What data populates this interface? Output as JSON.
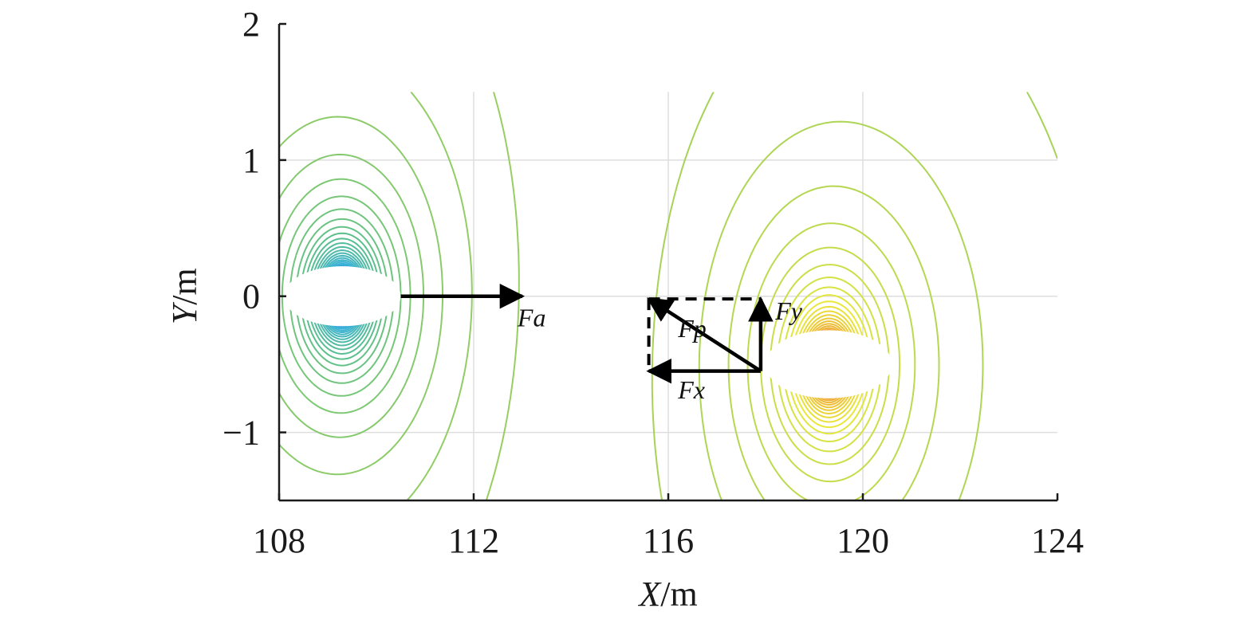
{
  "chart_data": {
    "type": "contour",
    "xlabel": {
      "italic": "X",
      "unit": "/m"
    },
    "ylabel": {
      "italic": "Y",
      "unit": "/m"
    },
    "xlim": [
      108,
      124
    ],
    "ylim": [
      -1.5,
      2
    ],
    "xticks": [
      {
        "value": 108,
        "label": "108"
      },
      {
        "value": 112,
        "label": "112"
      },
      {
        "value": 116,
        "label": "116"
      },
      {
        "value": 120,
        "label": "120"
      },
      {
        "value": 124,
        "label": "124"
      }
    ],
    "yticks": [
      {
        "value": -1,
        "label": "−1"
      },
      {
        "value": 0,
        "label": "0"
      },
      {
        "value": 1,
        "label": "1"
      },
      {
        "value": 2,
        "label": "2"
      }
    ],
    "grid": true,
    "field_extent": {
      "x": [
        108,
        124
      ],
      "y": [
        -1.5,
        1.5
      ]
    },
    "sources": [
      {
        "name": "attractor",
        "center": [
          109.3,
          0.0
        ],
        "semi_axes": [
          1.2,
          0.22
        ],
        "strength": -1
      },
      {
        "name": "obstacle",
        "center": [
          119.3,
          -0.5
        ],
        "semi_axes": [
          1.3,
          0.25
        ],
        "strength": 1
      }
    ],
    "colormap": [
      "#1f1f8a",
      "#2a6fc0",
      "#37b0d8",
      "#5bbf8c",
      "#9fd05a",
      "#e8e83a",
      "#f0a030",
      "#d8202a",
      "#7a0a1a"
    ],
    "vectors": [
      {
        "label": "Fa",
        "from": [
          110.5,
          0.0
        ],
        "to": [
          113.0,
          0.0
        ],
        "style": "solid"
      },
      {
        "label": "Fy",
        "from": [
          117.9,
          -0.55
        ],
        "to": [
          117.9,
          -0.02
        ],
        "style": "solid"
      },
      {
        "label": "Fp",
        "from": [
          117.9,
          -0.55
        ],
        "to": [
          115.6,
          -0.02
        ],
        "style": "solid"
      },
      {
        "label": "Fx",
        "from": [
          117.9,
          -0.55
        ],
        "to": [
          115.6,
          -0.55
        ],
        "style": "solid"
      }
    ],
    "dashed_guides": [
      {
        "from": [
          115.6,
          -0.02
        ],
        "to": [
          117.9,
          -0.02
        ]
      },
      {
        "from": [
          115.6,
          -0.02
        ],
        "to": [
          115.6,
          -0.55
        ]
      }
    ],
    "annotations": [
      {
        "text": "Fa",
        "at": [
          112.9,
          -0.22
        ]
      },
      {
        "text": "Fy",
        "at": [
          118.2,
          -0.17
        ]
      },
      {
        "text": "Fp",
        "at": [
          116.2,
          -0.3
        ]
      },
      {
        "text": "Fx",
        "at": [
          116.2,
          -0.75
        ]
      }
    ]
  }
}
